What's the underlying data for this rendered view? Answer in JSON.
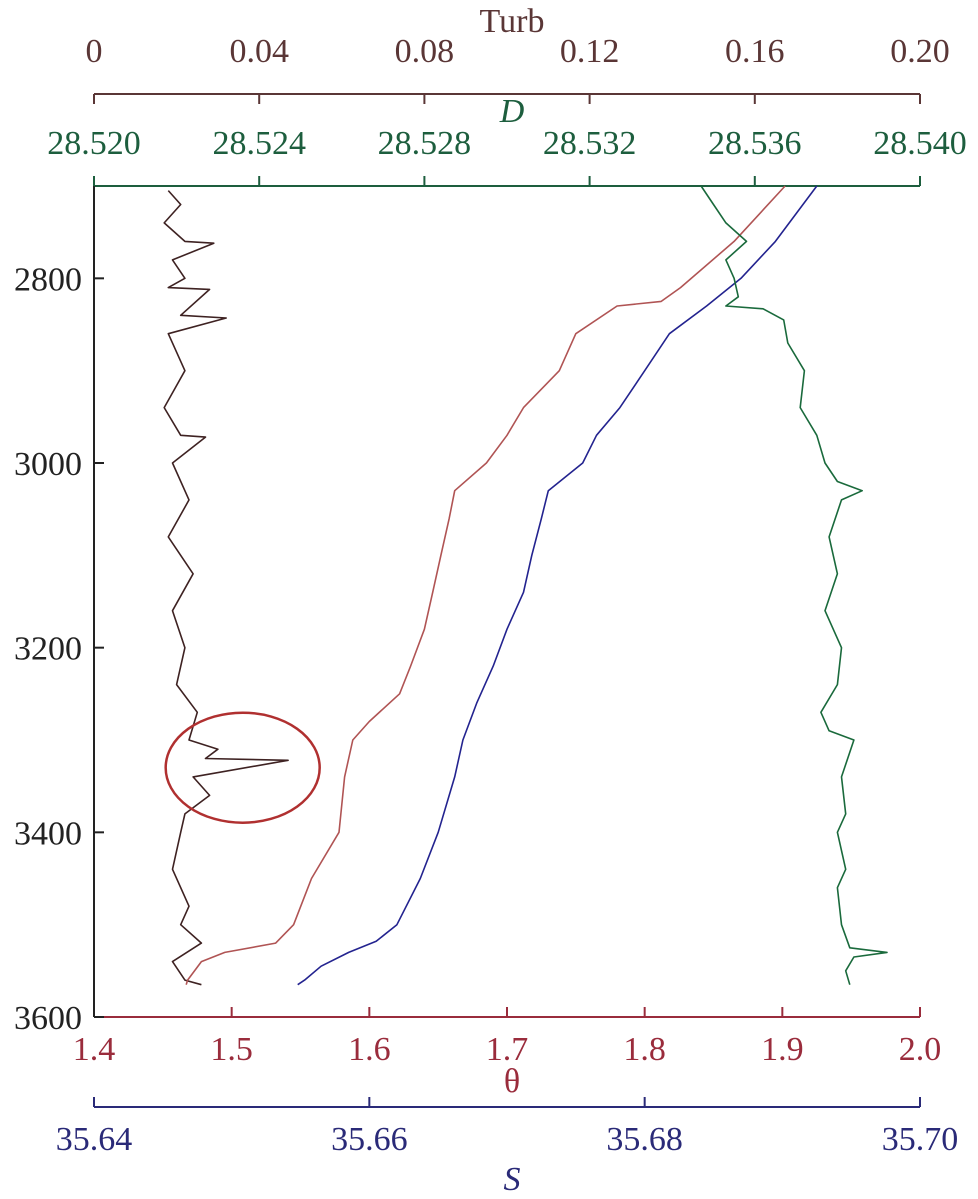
{
  "chart_data": {
    "type": "line",
    "grid": false,
    "y_axis": {
      "label": "",
      "range": [
        2700,
        3600
      ],
      "inverted": true,
      "ticks": [
        "2800",
        "3000",
        "3200",
        "3400",
        "3600"
      ],
      "tick_values": [
        2800,
        3000,
        3200,
        3400,
        3600
      ],
      "color": "#222222"
    },
    "x_axes": [
      {
        "id": "turb",
        "title": "Turb",
        "position": "top-outer",
        "range": [
          0,
          0.2
        ],
        "ticks": [
          "0",
          "0.04",
          "0.08",
          "0.12",
          "0.16",
          "0.20"
        ],
        "tick_values": [
          0,
          0.04,
          0.08,
          0.12,
          0.16,
          0.2
        ],
        "color": "#5a3636"
      },
      {
        "id": "D",
        "title": "D",
        "position": "top-inner",
        "range": [
          28.52,
          28.54
        ],
        "ticks": [
          "28.520",
          "28.524",
          "28.528",
          "28.532",
          "28.536",
          "28.540"
        ],
        "tick_values": [
          28.52,
          28.524,
          28.528,
          28.532,
          28.536,
          28.54
        ],
        "color": "#1d5e3e"
      },
      {
        "id": "theta",
        "title": "θ",
        "position": "bottom-inner",
        "range": [
          1.4,
          2.0
        ],
        "ticks": [
          "1.4",
          "1.5",
          "1.6",
          "1.7",
          "1.8",
          "1.9",
          "2.0"
        ],
        "tick_values": [
          1.4,
          1.5,
          1.6,
          1.7,
          1.8,
          1.9,
          2.0
        ],
        "color": "#9a2c3c"
      },
      {
        "id": "S",
        "title": "S",
        "position": "bottom-outer",
        "range": [
          35.64,
          35.7
        ],
        "ticks": [
          "35.64",
          "35.66",
          "35.68",
          "35.70"
        ],
        "tick_values": [
          35.64,
          35.66,
          35.68,
          35.7
        ],
        "color": "#2a2a78"
      }
    ],
    "series": [
      {
        "axis": "turb",
        "color": "#3e2222",
        "depth": [
          2705,
          2720,
          2740,
          2760,
          2762,
          2780,
          2800,
          2810,
          2812,
          2840,
          2843,
          2860,
          2900,
          2940,
          2970,
          2972,
          3000,
          3040,
          3080,
          3120,
          3160,
          3200,
          3240,
          3270,
          3300,
          3310,
          3320,
          3322,
          3340,
          3360,
          3380,
          3400,
          3440,
          3480,
          3500,
          3520,
          3540,
          3560,
          3565
        ],
        "values": [
          0.018,
          0.021,
          0.017,
          0.022,
          0.029,
          0.019,
          0.022,
          0.018,
          0.028,
          0.021,
          0.032,
          0.018,
          0.022,
          0.017,
          0.021,
          0.027,
          0.019,
          0.023,
          0.018,
          0.024,
          0.019,
          0.022,
          0.02,
          0.025,
          0.023,
          0.03,
          0.027,
          0.047,
          0.024,
          0.028,
          0.022,
          0.021,
          0.019,
          0.023,
          0.021,
          0.026,
          0.019,
          0.022,
          0.026
        ]
      },
      {
        "axis": "theta",
        "color": "#b05454",
        "depth": [
          2700,
          2760,
          2810,
          2825,
          2830,
          2860,
          2900,
          2940,
          2970,
          3000,
          3030,
          3060,
          3100,
          3140,
          3180,
          3220,
          3250,
          3280,
          3300,
          3340,
          3400,
          3450,
          3500,
          3520,
          3530,
          3540,
          3560,
          3565
        ],
        "values": [
          1.902,
          1.865,
          1.826,
          1.812,
          1.78,
          1.75,
          1.738,
          1.712,
          1.7,
          1.685,
          1.662,
          1.658,
          1.652,
          1.646,
          1.64,
          1.63,
          1.622,
          1.6,
          1.588,
          1.582,
          1.578,
          1.558,
          1.545,
          1.532,
          1.495,
          1.478,
          1.468,
          1.467
        ]
      },
      {
        "axis": "S",
        "color": "#23238f",
        "depth": [
          2700,
          2760,
          2800,
          2830,
          2860,
          2900,
          2940,
          2970,
          3000,
          3030,
          3060,
          3100,
          3140,
          3180,
          3220,
          3260,
          3300,
          3340,
          3400,
          3450,
          3500,
          3518,
          3530,
          3545,
          3560,
          3565
        ],
        "values": [
          35.6925,
          35.6895,
          35.687,
          35.6845,
          35.6818,
          35.68,
          35.6782,
          35.6765,
          35.6755,
          35.673,
          35.6725,
          35.6718,
          35.6712,
          35.67,
          35.669,
          35.6678,
          35.6668,
          35.6662,
          35.665,
          35.6637,
          35.662,
          35.6605,
          35.6585,
          35.6565,
          35.6553,
          35.6548
        ]
      },
      {
        "axis": "D",
        "color": "#1a6a3c",
        "depth": [
          2700,
          2720,
          2740,
          2760,
          2780,
          2800,
          2820,
          2830,
          2833,
          2845,
          2870,
          2900,
          2940,
          2970,
          3000,
          3020,
          3030,
          3040,
          3080,
          3120,
          3160,
          3200,
          3240,
          3270,
          3290,
          3300,
          3340,
          3380,
          3400,
          3440,
          3460,
          3500,
          3525,
          3530,
          3535,
          3550,
          3565
        ],
        "values": [
          28.5347,
          28.535,
          28.5353,
          28.5358,
          28.5353,
          28.5355,
          28.5356,
          28.5353,
          28.5362,
          28.5367,
          28.5368,
          28.5372,
          28.5371,
          28.5375,
          28.5377,
          28.538,
          28.5386,
          28.5381,
          28.5378,
          28.538,
          28.5377,
          28.5381,
          28.538,
          28.5376,
          28.5378,
          28.5384,
          28.5381,
          28.5382,
          28.538,
          28.5382,
          28.538,
          28.5381,
          28.5383,
          28.5392,
          28.5384,
          28.5382,
          28.5383
        ]
      }
    ],
    "annotation": {
      "shape": "ellipse",
      "color": "#b03030",
      "center_depth": 3330,
      "center_turb": 0.036
    }
  }
}
